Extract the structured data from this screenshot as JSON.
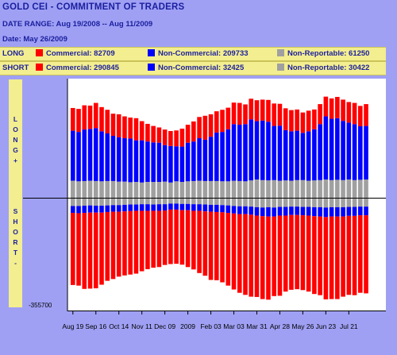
{
  "header": {
    "title": "GOLD CEI - COMMITMENT OF TRADERS",
    "date_range": "DATE RANGE: Aug 19/2008 -- Aug 11/2009",
    "date": "Date: May 26/2009"
  },
  "legend": {
    "long_label": "LONG",
    "short_label": "SHORT",
    "long_items": [
      {
        "text": "Commercial: 82709",
        "color": "#ff0000"
      },
      {
        "text": "Non-Commercial: 209733",
        "color": "#0000ff"
      },
      {
        "text": "Non-Reportable: 61250",
        "color": "#909090"
      }
    ],
    "short_items": [
      {
        "text": "Commercial: 290845",
        "color": "#ff0000"
      },
      {
        "text": "Non-Commercial: 32425",
        "color": "#0000ff"
      },
      {
        "text": "Non-Reportable: 30422",
        "color": "#909090"
      }
    ]
  },
  "side": {
    "long_letters": [
      "L",
      "O",
      "N",
      "G",
      "+"
    ],
    "short_letters": [
      "S",
      "H",
      "O",
      "R",
      "T",
      "-"
    ]
  },
  "chart_data": {
    "type": "bar",
    "stacked": true,
    "title": "GOLD CEI - COMMITMENT OF TRADERS",
    "ymin_label": "-355700",
    "ymin": -355700,
    "ymax": 355700,
    "x_tick_labels": [
      "Aug 19",
      "Sep 16",
      "Oct 14",
      "Nov 11",
      "Dec 09",
      "2009",
      "Feb 03",
      "Mar 03",
      "Mar 31",
      "Apr 28",
      "May 26",
      "Jun 23",
      "Jul 21"
    ],
    "colors": {
      "commercial": "#ff0000",
      "non_commercial": "#0000ff",
      "non_reportable": "#a0a0a0"
    },
    "long_series": [
      {
        "name": "Commercial",
        "values": [
          76000,
          77000,
          81000,
          78000,
          84000,
          81000,
          79000,
          74000,
          77000,
          73000,
          70000,
          74000,
          64000,
          59000,
          55000,
          51000,
          52000,
          50000,
          53000,
          60000,
          60000,
          67000,
          71000,
          80000,
          75000,
          71000,
          74000,
          72000,
          72000,
          73000,
          66000,
          69000,
          70000,
          70000,
          73000,
          75000,
          73000,
          73000,
          71000,
          71000,
          68000,
          69000,
          66000,
          67000,
          66000,
          68000,
          71000,
          71000,
          69000,
          71000,
          68000,
          73000
        ]
      },
      {
        "name": "Non-Commercial",
        "values": [
          167000,
          165000,
          172000,
          173000,
          177000,
          167000,
          159000,
          151000,
          148000,
          145000,
          146000,
          139000,
          141000,
          135000,
          132000,
          131000,
          122000,
          122000,
          117000,
          118000,
          129000,
          132000,
          142000,
          138000,
          148000,
          162000,
          165000,
          174000,
          189000,
          188000,
          191000,
          204000,
          195000,
          199000,
          196000,
          181000,
          184000,
          168000,
          165000,
          165000,
          158000,
          165000,
          171000,
          187000,
          211000,
          205000,
          206000,
          198000,
          190000,
          187000,
          179000,
          179000
        ]
      },
      {
        "name": "Non-Reportable",
        "values": [
          57000,
          55000,
          56000,
          57000,
          56000,
          55000,
          56000,
          56000,
          54000,
          54000,
          52000,
          53000,
          51000,
          53000,
          53000,
          53000,
          54000,
          51000,
          55000,
          53000,
          55000,
          56000,
          57000,
          56000,
          56000,
          56000,
          55000,
          55000,
          57000,
          56000,
          55000,
          58000,
          61000,
          59000,
          58000,
          59000,
          57000,
          58000,
          57000,
          59000,
          59000,
          57000,
          58000,
          59000,
          61000,
          59000,
          60000,
          59000,
          61000,
          59000,
          60000,
          61000
        ]
      }
    ],
    "short_series": [
      {
        "name": "Non-Reportable",
        "values": [
          25000,
          25000,
          24000,
          23000,
          24000,
          24000,
          23000,
          22000,
          22000,
          21000,
          20000,
          20000,
          19000,
          19000,
          20000,
          19000,
          19000,
          17000,
          17000,
          18000,
          18000,
          19000,
          19000,
          20000,
          21000,
          21000,
          22000,
          23000,
          25000,
          26000,
          26000,
          27000,
          29000,
          30000,
          29000,
          30000,
          28000,
          28000,
          27000,
          27000,
          28000,
          28000,
          29000,
          29000,
          30000,
          29000,
          29000,
          29000,
          28000,
          28000,
          27000,
          27000
        ]
      },
      {
        "name": "Non-Commercial",
        "values": [
          23000,
          24000,
          24000,
          24000,
          23000,
          23000,
          22000,
          22000,
          22000,
          22000,
          22000,
          21000,
          22000,
          22000,
          21000,
          22000,
          21000,
          20000,
          20000,
          21000,
          21000,
          22000,
          22000,
          23000,
          23000,
          24000,
          24000,
          25000,
          25000,
          26000,
          26000,
          27000,
          28000,
          29000,
          31000,
          30000,
          29000,
          29000,
          28000,
          28000,
          28000,
          29000,
          30000,
          31000,
          32000,
          31000,
          31000,
          31000,
          30000,
          30000,
          29000,
          29000
        ]
      },
      {
        "name": "Commercial",
        "values": [
          241000,
          242000,
          254000,
          254000,
          253000,
          241000,
          230000,
          225000,
          217000,
          214000,
          212000,
          210000,
          202000,
          195000,
          190000,
          188000,
          182000,
          182000,
          181000,
          182000,
          190000,
          196000,
          208000,
          215000,
          228000,
          228000,
          234000,
          243000,
          254000,
          263000,
          270000,
          274000,
          272000,
          277000,
          278000,
          266000,
          268000,
          254000,
          250000,
          248000,
          250000,
          254000,
          260000,
          263000,
          275000,
          276000,
          276000,
          268000,
          264000,
          265000,
          259000,
          261000
        ]
      }
    ]
  }
}
